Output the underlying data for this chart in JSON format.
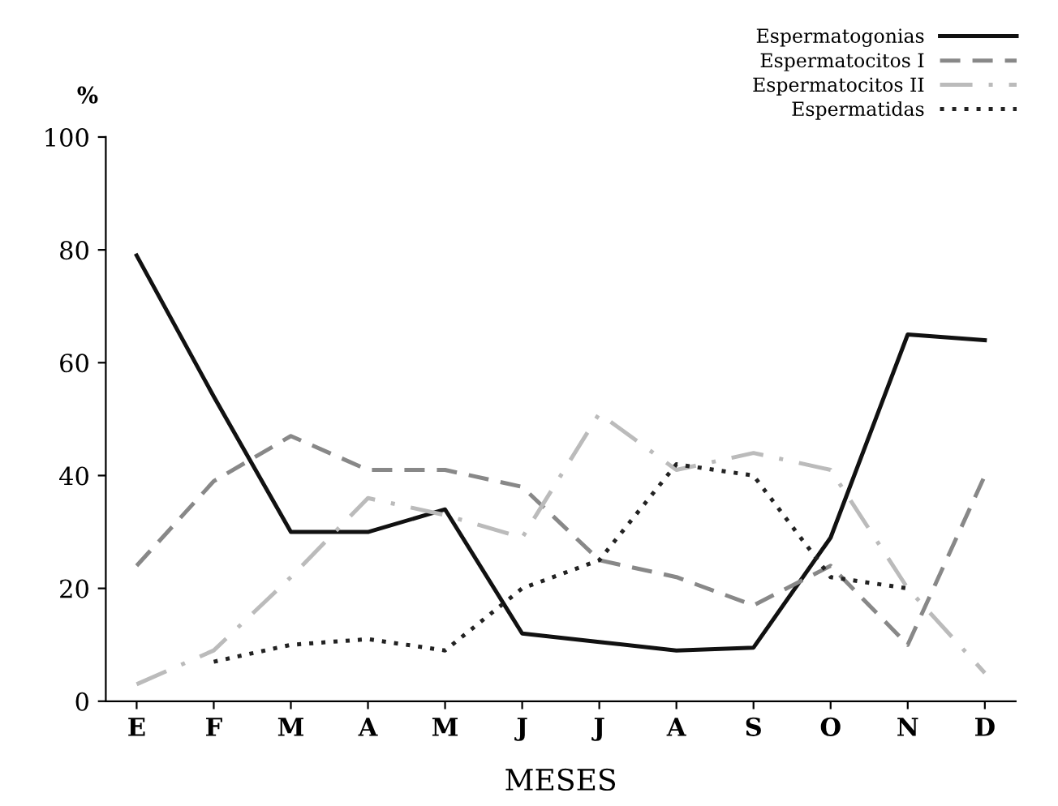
{
  "chart_data": {
    "type": "line",
    "ylabel": "%",
    "xlabel": "MESES",
    "categories": [
      "E",
      "F",
      "M",
      "A",
      "M",
      "J",
      "J",
      "A",
      "S",
      "O",
      "N",
      "D"
    ],
    "ylim": [
      0,
      100
    ],
    "yticks": [
      0,
      20,
      40,
      60,
      80,
      100
    ],
    "grid": false,
    "legend": "top right",
    "marker": "none",
    "series": [
      {
        "name": "Espermatogonias",
        "color": "#111111",
        "line_style": "solid",
        "values": [
          79,
          54,
          30,
          30,
          34,
          12,
          10.5,
          9,
          9.5,
          29,
          65,
          64
        ]
      },
      {
        "name": "Espermatocitos I",
        "color": "#888888",
        "line_style": "dashed",
        "values": [
          24,
          39,
          47,
          41,
          41,
          38,
          25,
          22,
          17,
          24,
          10,
          40
        ]
      },
      {
        "name": "Espermatocitos II",
        "color": "#bbbbbb",
        "line_style": "dashdot",
        "values": [
          3,
          9,
          22,
          36,
          33,
          29,
          51,
          41,
          44,
          41,
          20,
          5
        ]
      },
      {
        "name": "Espermatidas",
        "color": "#222222",
        "line_style": "dotted",
        "values": [
          null,
          7,
          10,
          11,
          9,
          20,
          25,
          42,
          40,
          22,
          20,
          null
        ]
      }
    ]
  }
}
